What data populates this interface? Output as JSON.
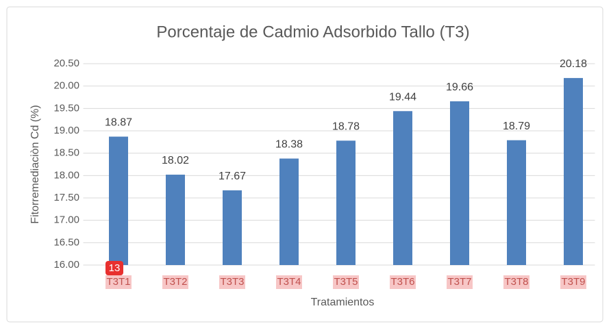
{
  "chart_data": {
    "type": "bar",
    "title": "Porcentaje de Cadmio Adsorbido Tallo (T3)",
    "x_label": "Tratamientos",
    "y_label": "Fitorremediaciòn Cd (%)",
    "categories": [
      "T3T1",
      "T3T2",
      "T3T3",
      "T3T4",
      "T3T5",
      "T3T6",
      "T3T7",
      "T3T8",
      "T3T9"
    ],
    "values": [
      18.87,
      18.02,
      17.67,
      18.38,
      18.78,
      19.44,
      19.66,
      18.79,
      20.18
    ],
    "color": "#4f81bd",
    "ylim": [
      16,
      20.5
    ],
    "yticks": [
      {
        "value": 16,
        "label": "16.00"
      },
      {
        "value": 16.5,
        "label": "16.50"
      },
      {
        "value": 17,
        "label": "17.00"
      },
      {
        "value": 17.5,
        "label": "17.50"
      },
      {
        "value": 18,
        "label": "18.00"
      },
      {
        "value": 18.5,
        "label": "18.50"
      },
      {
        "value": 19,
        "label": "19.00"
      },
      {
        "value": 19.5,
        "label": "19.50"
      },
      {
        "value": 20,
        "label": "20.00"
      },
      {
        "value": 20.5,
        "label": "20.50"
      }
    ],
    "grid": true,
    "annotation": "13"
  }
}
